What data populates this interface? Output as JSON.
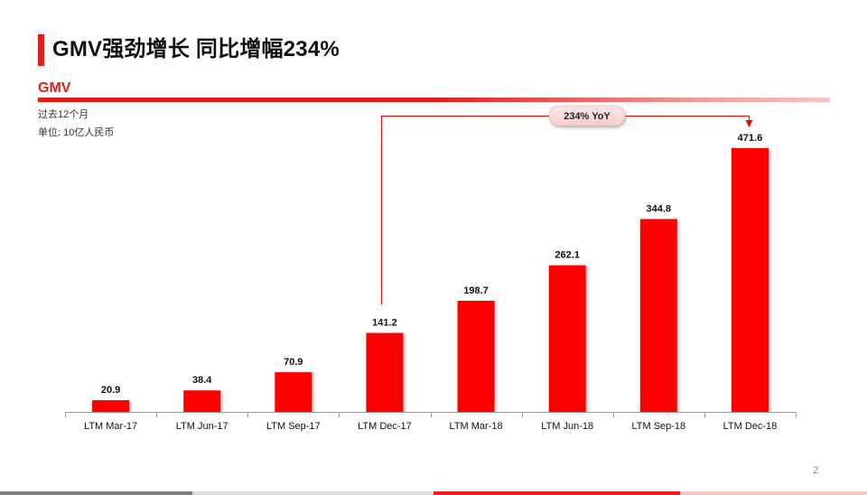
{
  "header": {
    "title": "GMV强劲增长 同比增幅234%"
  },
  "section": {
    "label": "GMV"
  },
  "notes": {
    "period": "过去12个月",
    "unit": "单位: 10亿人民币"
  },
  "annotation": {
    "label": "234% YoY"
  },
  "page": {
    "number": "2"
  },
  "colors": {
    "accent": "#FF0000",
    "title_accent": "#E11E1E",
    "axis": "#9A9A9A"
  },
  "chart_data": {
    "type": "bar",
    "categories": [
      "LTM Mar-17",
      "LTM Jun-17",
      "LTM Sep-17",
      "LTM Dec-17",
      "LTM Mar-18",
      "LTM Jun-18",
      "LTM Sep-18",
      "LTM Dec-18"
    ],
    "values": [
      20.9,
      38.4,
      70.9,
      141.2,
      198.7,
      262.1,
      344.8,
      471.6
    ],
    "value_labels": [
      "20.9",
      "38.4",
      "70.9",
      "141.2",
      "198.7",
      "262.1",
      "344.8",
      "471.6"
    ],
    "title": "",
    "xlabel": "",
    "ylabel": "",
    "ylim": [
      0,
      471.6
    ],
    "grid": false,
    "legend": "none",
    "annotation": {
      "text": "234% YoY",
      "from": "LTM Dec-17",
      "to": "LTM Dec-18"
    }
  }
}
